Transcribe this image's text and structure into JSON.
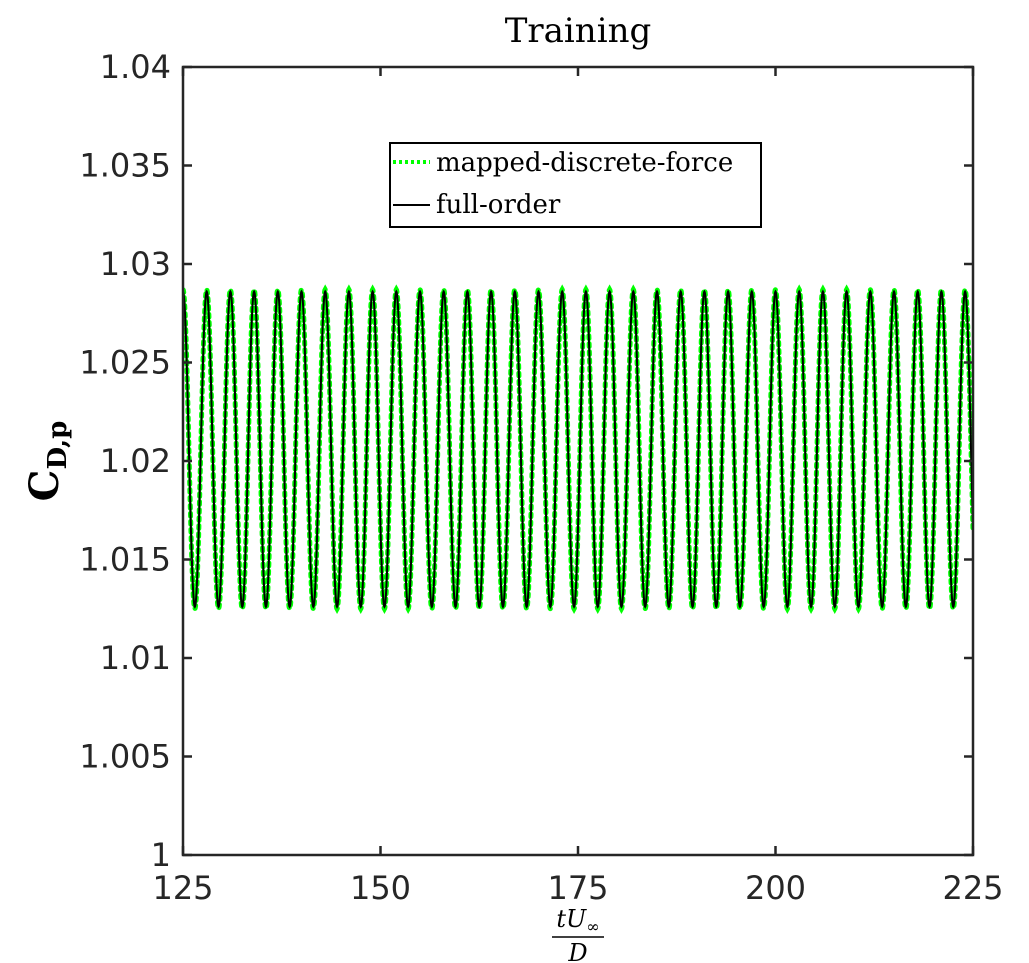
{
  "chart_data": {
    "type": "line",
    "title": "Training",
    "xlabel": {
      "num_t": "t",
      "num_U": "U",
      "num_sub": "∞",
      "den": "D"
    },
    "ylabel": {
      "main": "C",
      "sub": "D,p"
    },
    "xlim": [
      125,
      225
    ],
    "ylim": [
      1.0,
      1.04
    ],
    "xticks": [
      125,
      150,
      175,
      200,
      225
    ],
    "xtick_labels": [
      "125",
      "150",
      "175",
      "200",
      "225"
    ],
    "yticks": [
      1.0,
      1.005,
      1.01,
      1.015,
      1.02,
      1.025,
      1.03,
      1.035,
      1.04
    ],
    "ytick_labels": [
      "1",
      "1.005",
      "1.01",
      "1.015",
      "1.02",
      "1.025",
      "1.03",
      "1.035",
      "1.04"
    ],
    "grid": false,
    "legend_position": "top-center",
    "series": [
      {
        "name": "mapped-discrete-force",
        "style": "dotted",
        "color": "#00ff00",
        "mean": 1.0206,
        "amplitude": 0.0081,
        "period": 3.0,
        "phase_x_at_max": 125.0,
        "x_range": [
          125,
          225
        ]
      },
      {
        "name": "full-order",
        "style": "solid",
        "color": "#000000",
        "mean": 1.0206,
        "amplitude": 0.008,
        "period": 3.0,
        "phase_x_at_max": 125.0,
        "x_range": [
          125,
          225
        ]
      }
    ]
  }
}
